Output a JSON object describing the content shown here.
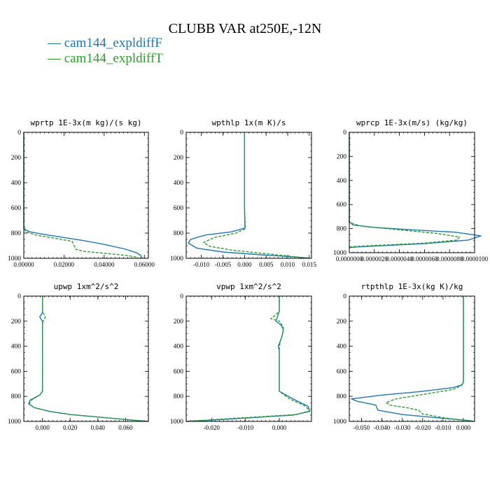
{
  "figure": {
    "title": "CLUBB VAR at250E,-12N",
    "legend": [
      {
        "name": "— cam144_expldiffF",
        "color": "#1f77b4"
      },
      {
        "name": "— cam144_expldiffT",
        "color": "#2ca02c"
      }
    ]
  },
  "chart_data": [
    {
      "type": "line",
      "title": "wprtp  1E-3x(m kg)/(s kg)",
      "xlim": [
        0,
        0.062
      ],
      "ylim": [
        1000,
        0
      ],
      "y_axis": "pressure (reversed)",
      "xticks": [
        0,
        0.02,
        0.04,
        0.06
      ],
      "xtick_labels": [
        "0.00000",
        "0.02000",
        "0.04000",
        "0.06000"
      ],
      "yticks": [
        0,
        200,
        400,
        600,
        800,
        1000
      ],
      "series": [
        {
          "name": "cam144_expldiffF",
          "color": "#1f77b4",
          "dash": false,
          "x": [
            0,
            0,
            0,
            0.0005,
            0.003,
            0.01,
            0.02,
            0.03,
            0.04,
            0.05,
            0.056,
            0.058,
            0.059
          ],
          "y": [
            0,
            600,
            750,
            770,
            790,
            810,
            835,
            860,
            890,
            925,
            955,
            975,
            1000
          ]
        },
        {
          "name": "cam144_expldiffT",
          "color": "#2ca02c",
          "dash": true,
          "x": [
            0,
            0,
            0,
            0.001,
            0.006,
            0.015,
            0.024,
            0.026,
            0.03,
            0.04,
            0.05,
            0.056,
            0.057
          ],
          "y": [
            0,
            600,
            760,
            790,
            815,
            840,
            865,
            930,
            945,
            960,
            975,
            990,
            1000
          ]
        }
      ]
    },
    {
      "type": "line",
      "title": "wpthlp  1x(m K)/s",
      "xlim": [
        -0.0135,
        0.0155
      ],
      "ylim": [
        1000,
        0
      ],
      "y_axis": "pressure (reversed)",
      "xticks": [
        -0.01,
        -0.005,
        0,
        0.005,
        0.01,
        0.015
      ],
      "xtick_labels": [
        "-0.010",
        "-0.005",
        "0.000",
        "0.005",
        "0.010",
        "0.015"
      ],
      "yticks": [
        0,
        200,
        400,
        600,
        800,
        1000
      ],
      "series": [
        {
          "name": "cam144_expldiffF",
          "color": "#1f77b4",
          "dash": false,
          "x": [
            0,
            0,
            0.0001,
            -0.003,
            -0.009,
            -0.0125,
            -0.013,
            -0.011,
            -0.005,
            0.005,
            0.012,
            0.015
          ],
          "y": [
            0,
            600,
            760,
            790,
            815,
            850,
            880,
            920,
            950,
            975,
            990,
            1000
          ]
        },
        {
          "name": "cam144_expldiffT",
          "color": "#2ca02c",
          "dash": true,
          "x": [
            0,
            0,
            0.0002,
            -0.002,
            -0.007,
            -0.0095,
            -0.008,
            -0.003,
            0.004,
            0.011,
            0.0148
          ],
          "y": [
            0,
            600,
            765,
            800,
            835,
            875,
            905,
            935,
            960,
            985,
            1000
          ]
        }
      ]
    },
    {
      "type": "line",
      "title": "wprcp  1E-3x(m/s) (kg/kg)",
      "xlim": [
        0,
        1e-05
      ],
      "ylim": [
        1000,
        0
      ],
      "y_axis": "pressure (reversed)",
      "xticks": [
        0,
        2e-06,
        4e-06,
        6e-06,
        8e-06,
        1e-05
      ],
      "xtick_labels": [
        "0.0000000",
        "0.0000020",
        "0.0000040",
        "0.0000060",
        "0.0000080",
        "0.0000100"
      ],
      "yticks": [
        0,
        200,
        400,
        600,
        800,
        1000
      ],
      "series": [
        {
          "name": "cam144_expldiffF",
          "color": "#1f77b4",
          "dash": false,
          "x": [
            0,
            0,
            0,
            3e-07,
            2e-06,
            5e-06,
            8.5e-06,
            1.05e-05,
            9.5e-06,
            6e-06,
            2e-06,
            2e-07,
            0
          ],
          "y": [
            0,
            600,
            740,
            770,
            790,
            810,
            830,
            860,
            895,
            925,
            945,
            955,
            960
          ]
        },
        {
          "name": "cam144_expldiffT",
          "color": "#2ca02c",
          "dash": true,
          "x": [
            0,
            0,
            0,
            1e-06,
            4e-06,
            7e-06,
            8.8e-06,
            8.6e-06,
            6e-06,
            2e-06,
            2e-07,
            0
          ],
          "y": [
            0,
            600,
            750,
            780,
            810,
            840,
            870,
            895,
            920,
            940,
            950,
            960
          ]
        }
      ]
    },
    {
      "type": "line",
      "title": "upwp  1xm^2/s^2",
      "xlim": [
        -0.0135,
        0.0765
      ],
      "ylim": [
        1000,
        0
      ],
      "y_axis": "pressure (reversed)",
      "xticks": [
        0,
        0.02,
        0.04,
        0.06
      ],
      "xtick_labels": [
        "0.000",
        "0.020",
        "0.040",
        "0.060"
      ],
      "yticks": [
        0,
        200,
        400,
        600,
        800,
        1000
      ],
      "series": [
        {
          "name": "cam144_expldiffF",
          "color": "#1f77b4",
          "dash": false,
          "x": [
            0,
            0,
            -0.001,
            -0.002,
            -0.001,
            0,
            0,
            -0.002,
            -0.009,
            -0.01,
            -0.006,
            0.005,
            0.02,
            0.04,
            0.06,
            0.076
          ],
          "y": [
            0,
            130,
            150,
            165,
            185,
            200,
            760,
            790,
            830,
            860,
            890,
            920,
            945,
            965,
            985,
            1000
          ]
        },
        {
          "name": "cam144_expldiffT",
          "color": "#2ca02c",
          "dash": true,
          "x": [
            0,
            0,
            0.0015,
            0.002,
            0.001,
            0,
            0,
            -0.002,
            -0.008,
            -0.0095,
            -0.006,
            0.005,
            0.02,
            0.04,
            0.06,
            0.0765
          ],
          "y": [
            0,
            130,
            150,
            170,
            190,
            210,
            760,
            790,
            830,
            860,
            890,
            920,
            945,
            965,
            985,
            1000
          ]
        }
      ]
    },
    {
      "type": "line",
      "title": "vpwp  1xm^2/s^2",
      "xlim": [
        -0.0275,
        0.0095
      ],
      "ylim": [
        1000,
        0
      ],
      "y_axis": "pressure (reversed)",
      "xticks": [
        -0.02,
        -0.01,
        0
      ],
      "xtick_labels": [
        "-0.020",
        "-0.010",
        "0.000"
      ],
      "yticks": [
        0,
        200,
        400,
        600,
        800,
        1000
      ],
      "series": [
        {
          "name": "cam144_expldiffF",
          "color": "#1f77b4",
          "dash": false,
          "x": [
            0,
            0,
            -0.0005,
            -0.001,
            0.0005,
            0.0012,
            0.0008,
            0,
            -0.0003,
            0,
            0,
            0.004,
            0.0085,
            0.009,
            0.004,
            -0.008,
            -0.02,
            -0.0275
          ],
          "y": [
            0,
            120,
            160,
            200,
            230,
            270,
            320,
            380,
            400,
            440,
            760,
            820,
            880,
            920,
            950,
            970,
            990,
            1000
          ]
        },
        {
          "name": "cam144_expldiffT",
          "color": "#2ca02c",
          "dash": true,
          "x": [
            0,
            0,
            -0.001,
            -0.0025,
            0,
            0.0012,
            0.001,
            0.0002,
            0,
            0,
            0.003,
            0.0075,
            0.009,
            0.005,
            -0.007,
            -0.019,
            -0.027
          ],
          "y": [
            0,
            120,
            150,
            180,
            200,
            250,
            300,
            370,
            420,
            760,
            820,
            875,
            915,
            945,
            965,
            985,
            1000
          ]
        }
      ]
    },
    {
      "type": "line",
      "title": "rtpthlp  1E-3x(kg K)/kg",
      "xlim": [
        -0.056,
        0.0055
      ],
      "ylim": [
        1000,
        0
      ],
      "y_axis": "pressure (reversed)",
      "xticks": [
        -0.05,
        -0.04,
        -0.03,
        -0.02,
        -0.01,
        0
      ],
      "xtick_labels": [
        "-0.050",
        "-0.040",
        "-0.030",
        "-0.020",
        "-0.010",
        "0.000"
      ],
      "yticks": [
        0,
        200,
        400,
        600,
        800,
        1000
      ],
      "series": [
        {
          "name": "cam144_expldiffF",
          "color": "#1f77b4",
          "dash": false,
          "x": [
            0,
            0,
            -0.001,
            -0.005,
            -0.02,
            -0.04,
            -0.055,
            -0.052,
            -0.043,
            -0.042,
            -0.03,
            -0.01,
            0.002,
            0.005
          ],
          "y": [
            0,
            690,
            710,
            730,
            760,
            790,
            820,
            840,
            870,
            910,
            945,
            975,
            992,
            1000
          ]
        },
        {
          "name": "cam144_expldiffT",
          "color": "#2ca02c",
          "dash": true,
          "x": [
            0,
            0,
            -0.001,
            -0.005,
            -0.018,
            -0.033,
            -0.038,
            -0.036,
            -0.028,
            -0.022,
            -0.02,
            -0.01,
            0.001,
            0.004
          ],
          "y": [
            0,
            690,
            715,
            745,
            780,
            820,
            850,
            870,
            890,
            910,
            940,
            970,
            992,
            1000
          ]
        }
      ]
    }
  ]
}
